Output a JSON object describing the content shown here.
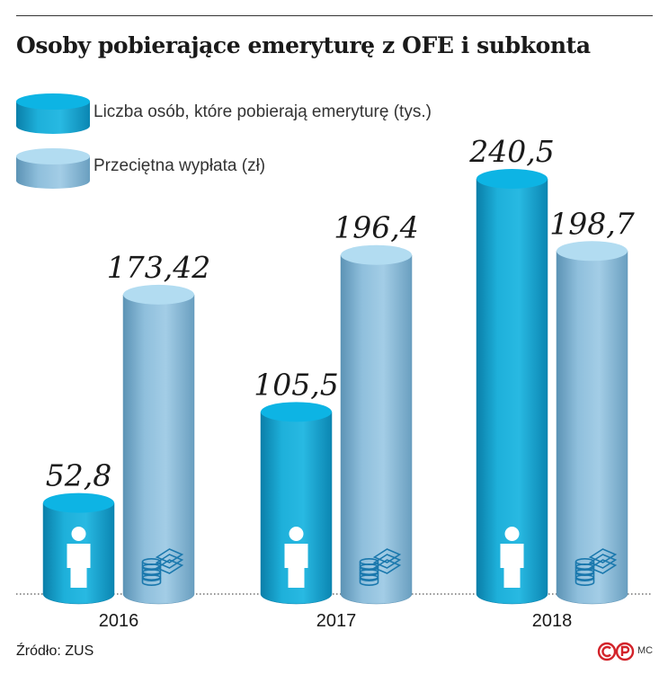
{
  "title": "Osoby pobierające emeryturę z OFE i subkonta",
  "source": "Źródło: ZUS",
  "author": "MC",
  "legend": [
    {
      "label": "Liczba osób, które pobierają emeryturę (tys.)",
      "color": "#1aa7d0"
    },
    {
      "label": "Przeciętna wypłata (zł)",
      "color": "#8fc3df"
    }
  ],
  "chart_data": {
    "type": "bar",
    "categories": [
      "2016",
      "2017",
      "2018"
    ],
    "series": [
      {
        "name": "Liczba osób, które pobierają emeryturę (tys.)",
        "values": [
          52.8,
          105.5,
          240.5
        ],
        "labels": [
          "52,8",
          "105,5",
          "240,5"
        ],
        "color": "#1aa7d0",
        "icon": "person-icon"
      },
      {
        "name": "Przeciętna wypłata (zł)",
        "values": [
          173.42,
          196.4,
          198.7
        ],
        "labels": [
          "173,42",
          "196,4",
          "198,7"
        ],
        "color": "#8fc3df",
        "icon": "coins-icon"
      }
    ],
    "grid": false,
    "legend_position": "top-left"
  }
}
